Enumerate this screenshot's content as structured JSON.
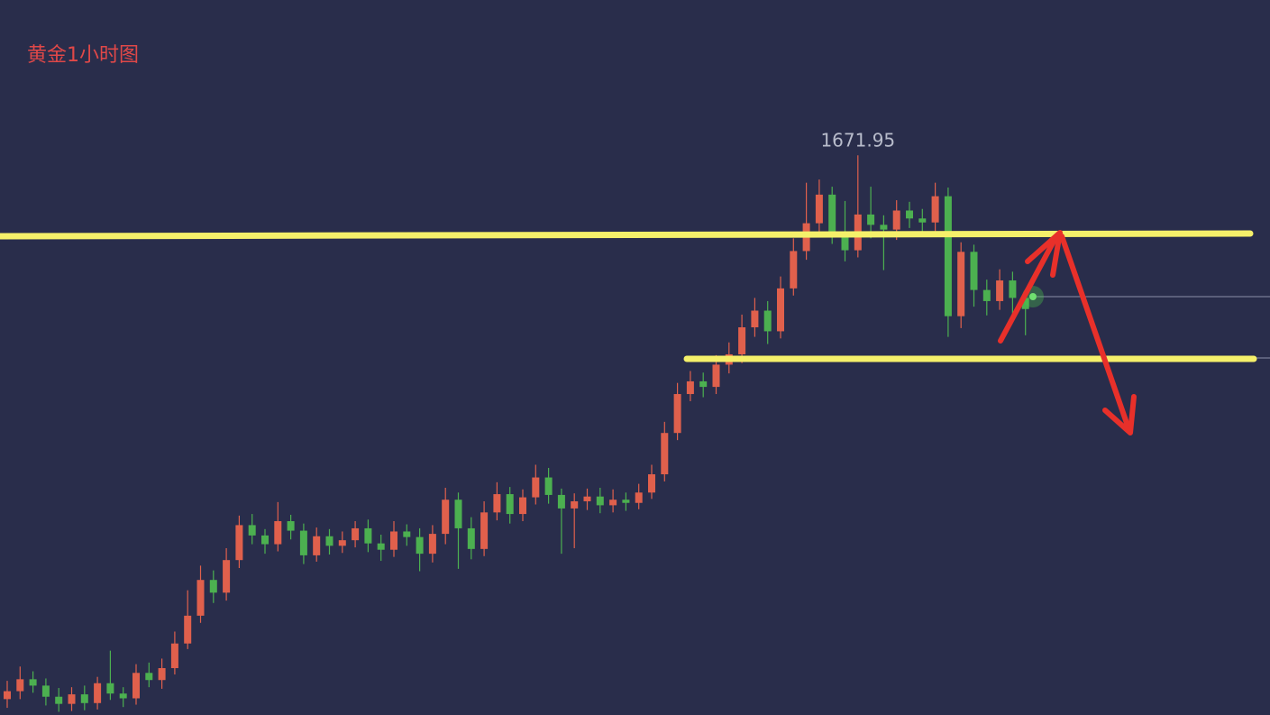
{
  "chart_data": {
    "type": "candlestick",
    "title": "黄金1小时图",
    "up_color": "#e0604c",
    "down_color": "#4cb050",
    "ylim": [
      1601.5,
      1691.5
    ],
    "open": [
      1603.5,
      1604.5,
      1606.0,
      1605.2,
      1603.8,
      1602.9,
      1604.1,
      1603.0,
      1605.5,
      1604.2,
      1603.6,
      1606.8,
      1605.9,
      1607.4,
      1610.5,
      1614.0,
      1618.5,
      1616.9,
      1621.0,
      1625.4,
      1624.1,
      1623.0,
      1625.9,
      1624.7,
      1621.6,
      1624.0,
      1622.8,
      1623.5,
      1625.0,
      1623.1,
      1622.3,
      1624.6,
      1623.9,
      1621.8,
      1624.3,
      1628.6,
      1625.0,
      1622.4,
      1627.0,
      1629.3,
      1626.8,
      1628.9,
      1631.4,
      1629.2,
      1627.5,
      1628.4,
      1629.0,
      1627.9,
      1628.6,
      1628.2,
      1629.5,
      1631.8,
      1637.0,
      1641.9,
      1643.5,
      1642.8,
      1645.6,
      1646.9,
      1650.3,
      1652.4,
      1649.8,
      1655.2,
      1659.9,
      1663.4,
      1667.0,
      1662.0,
      1660.0,
      1664.5,
      1663.2,
      1662.6,
      1665.0,
      1664.0,
      1663.5,
      1666.8,
      1651.7,
      1659.8,
      1655.0,
      1653.6,
      1656.2,
      1654.0
    ],
    "high": [
      1605.8,
      1607.6,
      1607.0,
      1606.1,
      1604.9,
      1605.0,
      1605.2,
      1606.3,
      1609.6,
      1605.0,
      1607.9,
      1608.1,
      1608.6,
      1612.0,
      1617.2,
      1620.3,
      1619.7,
      1622.5,
      1626.6,
      1626.8,
      1624.9,
      1628.3,
      1626.7,
      1625.6,
      1625.1,
      1624.9,
      1624.6,
      1625.9,
      1626.1,
      1624.2,
      1625.9,
      1625.5,
      1625.0,
      1625.4,
      1630.1,
      1629.5,
      1626.4,
      1628.4,
      1630.8,
      1630.2,
      1629.9,
      1633.0,
      1632.6,
      1630.0,
      1629.4,
      1630.0,
      1630.1,
      1629.9,
      1629.5,
      1630.6,
      1633.0,
      1638.4,
      1643.3,
      1644.8,
      1644.6,
      1646.8,
      1648.4,
      1651.9,
      1654.0,
      1653.6,
      1656.7,
      1661.5,
      1668.5,
      1668.9,
      1668.0,
      1666.2,
      1671.95,
      1668.0,
      1664.4,
      1666.3,
      1666.1,
      1665.2,
      1668.5,
      1667.9,
      1661.0,
      1660.7,
      1656.3,
      1657.6,
      1657.3,
      1655.0
    ],
    "low": [
      1602.4,
      1603.5,
      1604.3,
      1602.7,
      1601.9,
      1602.0,
      1602.1,
      1602.2,
      1603.4,
      1602.5,
      1602.8,
      1605.0,
      1604.8,
      1606.6,
      1609.8,
      1613.1,
      1615.6,
      1615.9,
      1620.0,
      1623.0,
      1621.8,
      1622.1,
      1623.6,
      1620.5,
      1620.8,
      1621.7,
      1621.9,
      1622.6,
      1622.0,
      1620.9,
      1621.4,
      1622.8,
      1619.6,
      1620.7,
      1623.0,
      1619.9,
      1621.1,
      1621.5,
      1626.0,
      1625.6,
      1625.9,
      1628.0,
      1628.1,
      1621.8,
      1622.5,
      1627.3,
      1626.9,
      1627.0,
      1627.2,
      1627.4,
      1628.7,
      1630.9,
      1636.1,
      1641.0,
      1641.5,
      1641.9,
      1644.5,
      1645.8,
      1649.1,
      1648.2,
      1648.9,
      1654.3,
      1658.8,
      1662.3,
      1660.8,
      1658.6,
      1659.1,
      1661.5,
      1657.5,
      1661.3,
      1662.8,
      1661.9,
      1662.4,
      1649.1,
      1650.2,
      1652.9,
      1651.8,
      1652.5,
      1651.4,
      1649.3
    ],
    "close": [
      1604.5,
      1606.0,
      1605.2,
      1603.8,
      1602.9,
      1604.1,
      1603.0,
      1605.5,
      1604.2,
      1603.6,
      1606.8,
      1605.9,
      1607.4,
      1610.5,
      1614.0,
      1618.5,
      1616.9,
      1621.0,
      1625.4,
      1624.1,
      1623.0,
      1625.9,
      1624.7,
      1621.6,
      1624.0,
      1622.8,
      1623.5,
      1625.0,
      1623.1,
      1622.3,
      1624.6,
      1623.9,
      1621.8,
      1624.3,
      1628.6,
      1625.0,
      1622.4,
      1627.0,
      1629.3,
      1626.8,
      1628.9,
      1631.4,
      1629.2,
      1627.5,
      1628.4,
      1629.0,
      1627.9,
      1628.6,
      1628.2,
      1629.5,
      1631.8,
      1637.0,
      1641.9,
      1643.5,
      1642.8,
      1645.6,
      1646.9,
      1650.3,
      1652.4,
      1649.8,
      1655.2,
      1659.9,
      1663.4,
      1667.0,
      1662.0,
      1660.0,
      1664.5,
      1663.2,
      1662.6,
      1665.0,
      1664.0,
      1663.5,
      1666.8,
      1651.7,
      1659.8,
      1655.0,
      1653.6,
      1656.2,
      1654.0,
      1652.6
    ]
  }
}
